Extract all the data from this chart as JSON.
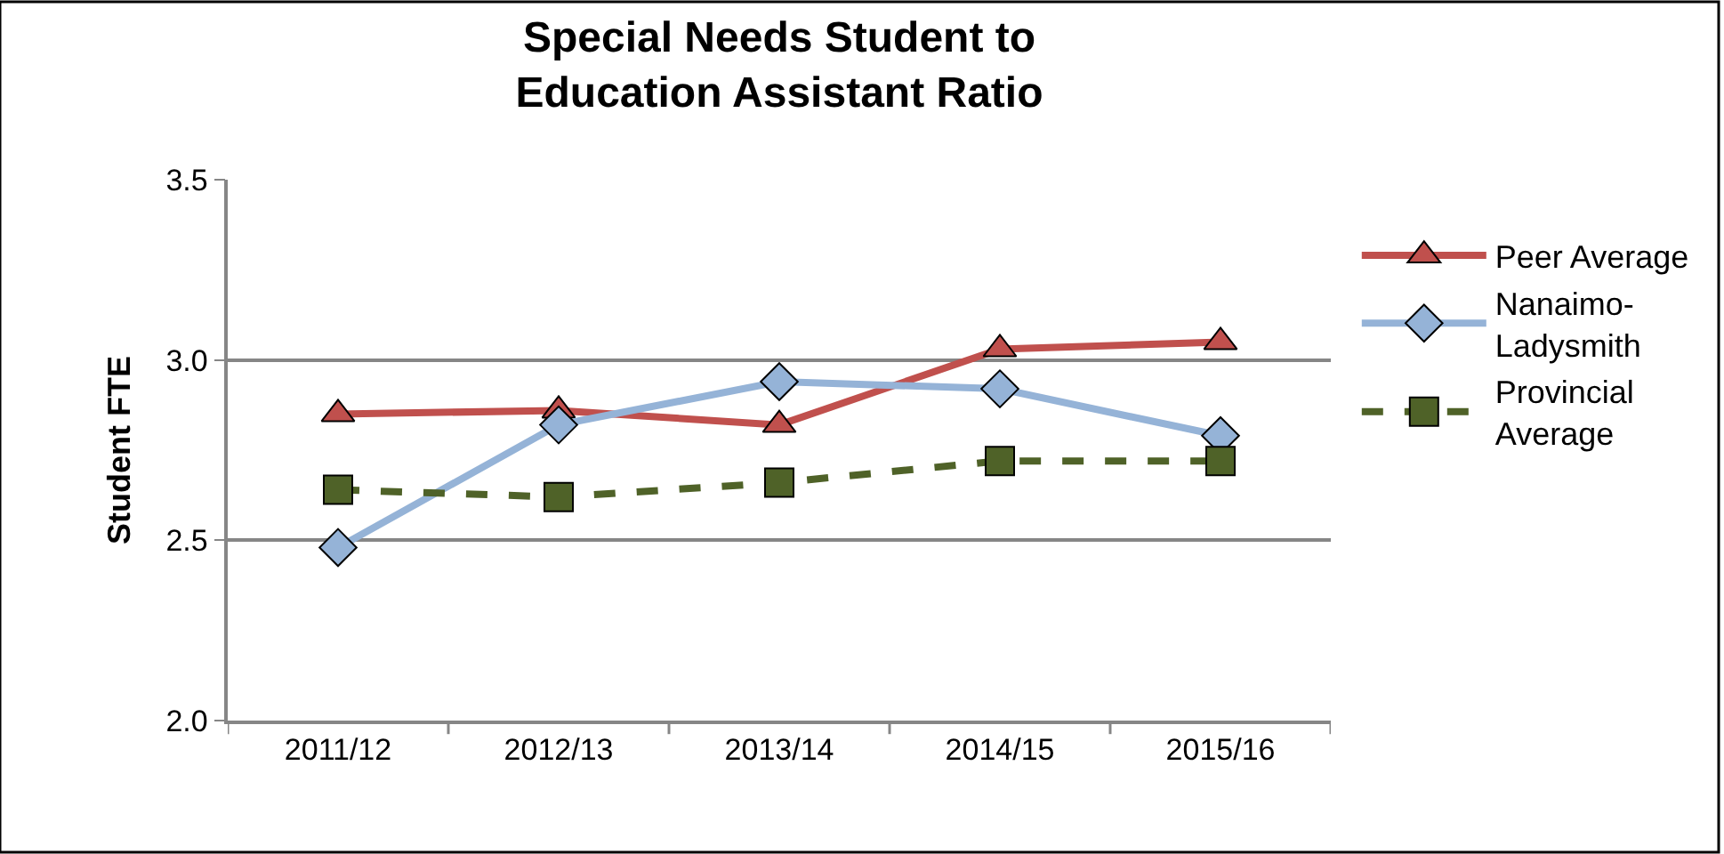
{
  "chart_data": {
    "type": "line",
    "title": "Special Needs Student to Education Assistant Ratio",
    "ylabel": "Student FTE",
    "categories": [
      "2011/12",
      "2012/13",
      "2013/14",
      "2014/15",
      "2015/16"
    ],
    "series": [
      {
        "name": "Peer Average",
        "color": "#c0504d",
        "marker": "triangle",
        "line_style": "solid",
        "values": [
          2.85,
          2.86,
          2.82,
          3.03,
          3.05
        ]
      },
      {
        "name": "Nanaimo-Ladysmith",
        "color": "#95b3d7",
        "marker": "diamond",
        "line_style": "solid",
        "values": [
          2.48,
          2.82,
          2.94,
          2.92,
          2.79
        ]
      },
      {
        "name": "Provincial Average",
        "color": "#4f6228",
        "marker": "square",
        "line_style": "dashed",
        "values": [
          2.64,
          2.62,
          2.66,
          2.72,
          2.72
        ]
      }
    ],
    "ylim": [
      2.0,
      3.5
    ],
    "yticks": [
      {
        "value": 2.0,
        "label": "2.0"
      },
      {
        "value": 2.5,
        "label": "2.5"
      },
      {
        "value": 3.0,
        "label": "3.0"
      },
      {
        "value": 3.5,
        "label": "3.5"
      }
    ],
    "grid": "y",
    "legend": "right"
  }
}
